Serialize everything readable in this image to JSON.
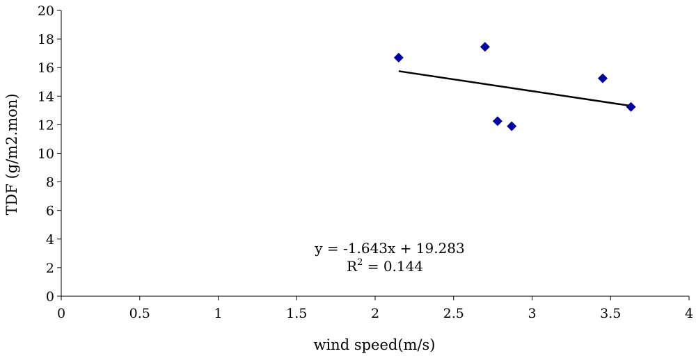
{
  "chart_data": {
    "type": "scatter",
    "xlabel": "wind speed(m/s)",
    "ylabel": "TDF (g/m2.mon)",
    "xlim": [
      0,
      4
    ],
    "ylim": [
      0,
      20
    ],
    "xticks": [
      0,
      0.5,
      1,
      1.5,
      2,
      2.5,
      3,
      3.5,
      4
    ],
    "yticks": [
      0,
      2,
      4,
      6,
      8,
      10,
      12,
      14,
      16,
      18,
      20
    ],
    "xtick_labels": [
      "0",
      "0.5",
      "1",
      "1.5",
      "2",
      "2.5",
      "3",
      "3.5",
      "4"
    ],
    "ytick_labels": [
      "0",
      "2",
      "4",
      "6",
      "8",
      "10",
      "12",
      "14",
      "16",
      "18",
      "20"
    ],
    "grid": false,
    "legend": false,
    "marker_color": "#0000A0",
    "points": [
      {
        "x": 2.15,
        "y": 16.7
      },
      {
        "x": 2.7,
        "y": 17.45
      },
      {
        "x": 2.78,
        "y": 12.25
      },
      {
        "x": 2.87,
        "y": 11.9
      },
      {
        "x": 3.45,
        "y": 15.25
      },
      {
        "x": 3.63,
        "y": 13.25
      }
    ],
    "trendline": {
      "type": "linear",
      "slope": -1.643,
      "intercept": 19.283,
      "x_start": 2.15,
      "x_end": 3.63,
      "color": "#000000"
    },
    "annotations": {
      "equation": "y = -1.643x + 19.283",
      "r2_prefix": "R",
      "r2_sup": "2",
      "r2_suffix": " = 0.144"
    }
  }
}
